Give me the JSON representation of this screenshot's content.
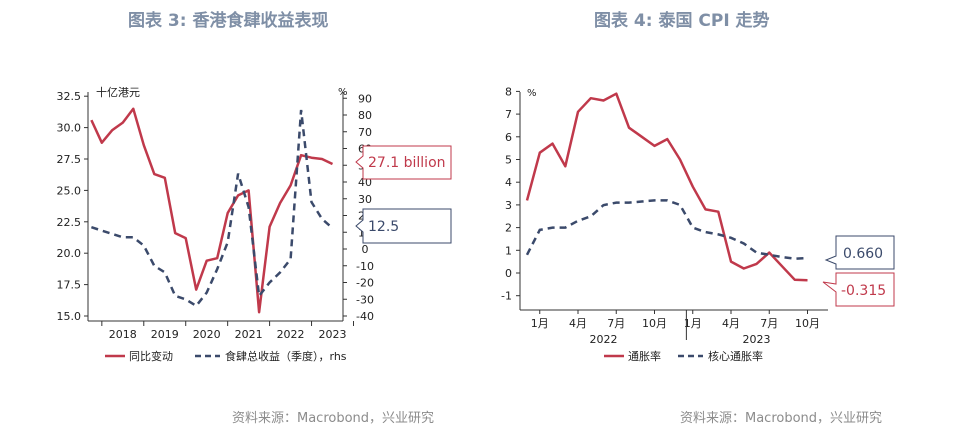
{
  "colors": {
    "red": "#c0394b",
    "navy": "#3b4a6b",
    "axis": "#333333",
    "title": "#7f8fa6",
    "source": "#8c8c8c"
  },
  "left": {
    "title": "图表 3:  香港食肆收益表现",
    "source": "资料来源：Macrobond，兴业研究",
    "unit_left": "十亿港元",
    "unit_right": "%",
    "callout_red": "27.1 billion",
    "callout_navy": "12.5",
    "legend_red": "同比变动",
    "legend_navy": "食肆总收益（季度），rhs"
  },
  "right": {
    "title": "图表 4:  泰国 CPI 走势",
    "source": "资料来源：Macrobond，兴业研究",
    "unit_left": "%",
    "callout_navy": "0.660",
    "callout_red": "-0.315",
    "legend_red": "通胀率",
    "legend_navy": "核心通胀率"
  },
  "chart_data": [
    {
      "type": "line",
      "title": "图表 3:  香港食肆收益表现",
      "x_ticks": [
        "2018",
        "2019",
        "2020",
        "2021",
        "2022",
        "2023"
      ],
      "y_left_ticks": [
        "15.0",
        "17.5",
        "20.0",
        "22.5",
        "25.0",
        "27.5",
        "30.0",
        "32.5"
      ],
      "y_left_range": [
        15.0,
        32.5
      ],
      "y_right_ticks": [
        "-40",
        "-30",
        "-20",
        "-10",
        "0",
        "10",
        "20",
        "30",
        "40",
        "50",
        "60",
        "70",
        "80",
        "90"
      ],
      "y_right_range": [
        -40,
        90
      ],
      "series": [
        {
          "name": "同比变动",
          "axis": "left",
          "color": "#c0394b",
          "x": [
            2017.75,
            2018.0,
            2018.25,
            2018.5,
            2018.75,
            2019.0,
            2019.25,
            2019.5,
            2019.75,
            2020.0,
            2020.25,
            2020.5,
            2020.75,
            2021.0,
            2021.25,
            2021.5,
            2021.75,
            2022.0,
            2022.25,
            2022.5,
            2022.75,
            2023.0,
            2023.25,
            2023.5
          ],
          "values": [
            30.6,
            28.8,
            29.8,
            30.4,
            31.5,
            28.6,
            26.3,
            26.0,
            21.6,
            21.2,
            17.1,
            19.4,
            19.6,
            23.2,
            24.6,
            25.0,
            15.3,
            22.1,
            24.0,
            25.4,
            27.8,
            27.6,
            27.5,
            27.1
          ]
        },
        {
          "name": "食肆总收益（季度），rhs",
          "axis": "right",
          "color": "#3b4a6b",
          "x": [
            2017.75,
            2018.0,
            2018.25,
            2018.5,
            2018.75,
            2019.0,
            2019.25,
            2019.5,
            2019.75,
            2020.0,
            2020.25,
            2020.5,
            2020.75,
            2021.0,
            2021.25,
            2021.5,
            2021.75,
            2022.0,
            2022.25,
            2022.5,
            2022.75,
            2023.0,
            2023.25,
            2023.5
          ],
          "values": [
            13,
            11,
            9,
            7,
            7,
            2,
            -10,
            -14,
            -28,
            -30,
            -34,
            -26,
            -12,
            4,
            45,
            25,
            -28,
            -20,
            -14,
            -6,
            83,
            28,
            18,
            12.5
          ]
        }
      ],
      "callouts": [
        "27.1 billion",
        "12.5"
      ]
    },
    {
      "type": "line",
      "title": "图表 4:  泰国 CPI 走势",
      "x_ticks": [
        "1月",
        "4月",
        "7月",
        "10月",
        "1月",
        "4月",
        "7月",
        "10月"
      ],
      "x_groups": [
        "2022",
        "2023"
      ],
      "y_ticks": [
        "-1",
        "0",
        "1",
        "2",
        "3",
        "4",
        "5",
        "6",
        "7",
        "8"
      ],
      "y_range": [
        -1,
        8
      ],
      "series": [
        {
          "name": "通胀率",
          "color": "#c0394b",
          "x": [
            "2021-12",
            "2022-01",
            "2022-02",
            "2022-03",
            "2022-04",
            "2022-05",
            "2022-06",
            "2022-07",
            "2022-08",
            "2022-09",
            "2022-10",
            "2022-11",
            "2022-12",
            "2023-01",
            "2023-02",
            "2023-03",
            "2023-04",
            "2023-05",
            "2023-06",
            "2023-07",
            "2023-08",
            "2023-09",
            "2023-10"
          ],
          "values": [
            3.2,
            5.3,
            5.7,
            4.7,
            7.1,
            7.7,
            7.6,
            7.9,
            6.4,
            6.0,
            5.6,
            5.9,
            5.0,
            3.8,
            2.8,
            2.7,
            0.5,
            0.2,
            0.4,
            0.9,
            0.3,
            -0.3,
            -0.315
          ]
        },
        {
          "name": "核心通胀率",
          "color": "#3b4a6b",
          "x": [
            "2021-12",
            "2022-01",
            "2022-02",
            "2022-03",
            "2022-04",
            "2022-05",
            "2022-06",
            "2022-07",
            "2022-08",
            "2022-09",
            "2022-10",
            "2022-11",
            "2022-12",
            "2023-01",
            "2023-02",
            "2023-03",
            "2023-04",
            "2023-05",
            "2023-06",
            "2023-07",
            "2023-08",
            "2023-09",
            "2023-10"
          ],
          "values": [
            0.8,
            1.9,
            2.0,
            2.0,
            2.3,
            2.5,
            2.99,
            3.1,
            3.1,
            3.15,
            3.2,
            3.2,
            3.0,
            2.0,
            1.8,
            1.7,
            1.55,
            1.3,
            0.9,
            0.8,
            0.7,
            0.63,
            0.66
          ]
        }
      ],
      "callouts": [
        "0.660",
        "-0.315"
      ]
    }
  ]
}
